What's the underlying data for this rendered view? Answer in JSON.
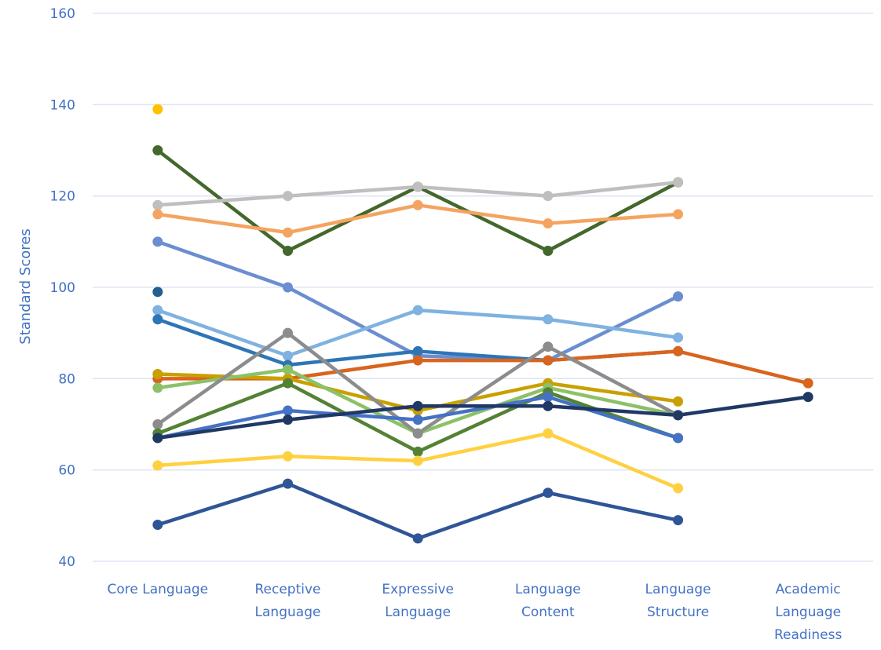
{
  "chart_data": {
    "type": "line",
    "title": "",
    "xlabel": "",
    "ylabel": "Standard Scores",
    "ylim": [
      40,
      160
    ],
    "yticks": [
      40,
      60,
      80,
      100,
      120,
      140,
      160
    ],
    "grid": true,
    "legend": "none",
    "categories": [
      [
        "Core Language"
      ],
      [
        "Receptive",
        "Language"
      ],
      [
        "Expressive",
        "Language"
      ],
      [
        "Language",
        "Content"
      ],
      [
        "Language",
        "Structure"
      ],
      [
        "Academic",
        "Language",
        "Readiness"
      ]
    ],
    "series": [
      {
        "color": "#FFC000",
        "values": [
          139,
          null,
          null,
          null,
          null,
          null
        ]
      },
      {
        "color": "#255E91",
        "values": [
          99,
          null,
          null,
          null,
          null,
          null
        ]
      },
      {
        "color": "#43682B",
        "values": [
          130,
          108,
          122,
          108,
          123,
          null
        ]
      },
      {
        "color": "#BFBFBF",
        "values": [
          118,
          120,
          122,
          120,
          123,
          null
        ]
      },
      {
        "color": "#F4A460",
        "values": [
          116,
          112,
          118,
          114,
          116,
          null
        ]
      },
      {
        "color": "#6A8ED0",
        "values": [
          110,
          100,
          85,
          84,
          98,
          null
        ]
      },
      {
        "color": "#7FB2E0",
        "values": [
          95,
          85,
          95,
          93,
          89,
          null
        ]
      },
      {
        "color": "#2E75B6",
        "values": [
          93,
          83,
          86,
          84,
          86,
          null
        ]
      },
      {
        "color": "#D9641E",
        "values": [
          80,
          80,
          84,
          84,
          86,
          79
        ]
      },
      {
        "color": "#C9A000",
        "values": [
          81,
          80,
          73,
          79,
          75,
          null
        ]
      },
      {
        "color": "#8CC168",
        "values": [
          78,
          82,
          68,
          78,
          72,
          null
        ]
      },
      {
        "color": "#8C8C8C",
        "values": [
          70,
          90,
          68,
          87,
          72,
          null
        ]
      },
      {
        "color": "#548235",
        "values": [
          68,
          79,
          64,
          77,
          67,
          null
        ]
      },
      {
        "color": "#4472C4",
        "values": [
          67,
          73,
          71,
          76,
          67,
          null
        ]
      },
      {
        "color": "#203864",
        "values": [
          67,
          71,
          74,
          74,
          72,
          76
        ]
      },
      {
        "color": "#FFD03F",
        "values": [
          61,
          63,
          62,
          68,
          56,
          null
        ]
      },
      {
        "color": "#2F5597",
        "values": [
          48,
          57,
          45,
          55,
          49,
          null
        ]
      }
    ]
  }
}
